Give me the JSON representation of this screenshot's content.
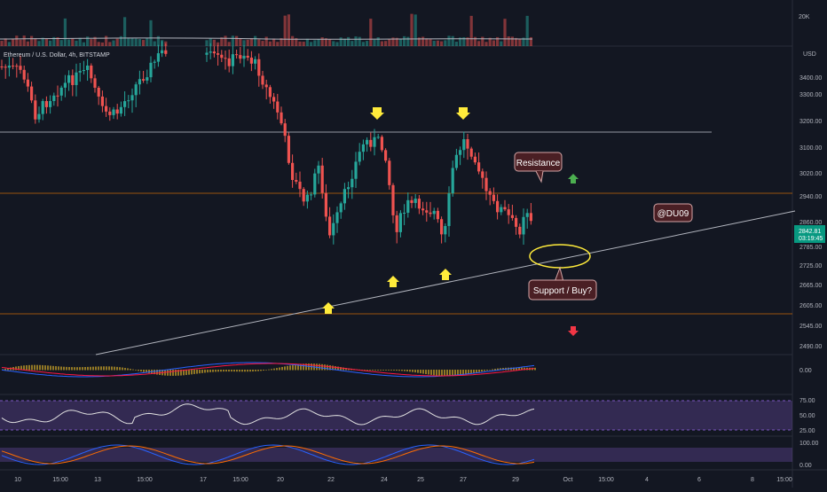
{
  "header": {
    "symbol_label": "Ethereum / U.S. Dollar, 4h, BITSTAMP",
    "currency": "USD",
    "volume_scale_label": "20K"
  },
  "price_axis": {
    "ticks": [
      "3400.00",
      "3300.00",
      "3200.00",
      "3100.00",
      "3020.00",
      "2940.00",
      "2860.00",
      "2785.00",
      "2725.00",
      "2665.00",
      "2605.00",
      "2545.00",
      "2490.00"
    ],
    "current_price": "2842.81",
    "countdown": "03:19:45"
  },
  "time_axis": {
    "labels": [
      "10",
      "15:00",
      "13",
      "15:00",
      "17",
      "15:00",
      "20",
      "22",
      "24",
      "25",
      "27",
      "29",
      "Oct",
      "15:00",
      "4",
      "6",
      "8",
      "15:00"
    ]
  },
  "annotations": {
    "resistance": "Resistance",
    "support": "Support / Buy?",
    "author": "@DU09"
  },
  "indicators": {
    "macd": {
      "ticks": [
        "0.00"
      ]
    },
    "rsi": {
      "ticks": [
        "75.00",
        "50.00",
        "25.00"
      ]
    },
    "stoch": {
      "ticks": [
        "100.00",
        "0.00"
      ]
    }
  },
  "colors": {
    "background": "#131722",
    "bull": "#26a69a",
    "bear": "#ef5350",
    "rsi_band": "#7e57c2",
    "arrow": "#ffeb3b",
    "label_bg": "#4a1f24",
    "trend_line": "#b2b5be",
    "resistance_line": "#9598a1",
    "orange_line": "#f57c00"
  }
}
